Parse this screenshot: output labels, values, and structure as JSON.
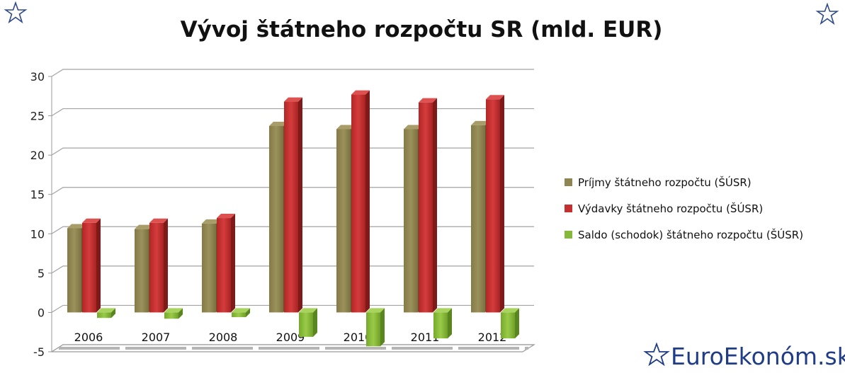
{
  "brand": {
    "text": "EuroEkonóm.sk",
    "icon": "star-outline-icon"
  },
  "chart_data": {
    "type": "bar",
    "title": "Vývoj štátneho rozpočtu SR (mld. EUR)",
    "xlabel": "",
    "ylabel": "",
    "categories": [
      "2006",
      "2007",
      "2008",
      "2009",
      "2010",
      "2011",
      "2012"
    ],
    "ylim": [
      -5,
      30
    ],
    "yticks": [
      "-5",
      "0",
      "5",
      "10",
      "15",
      "20",
      "25",
      "30"
    ],
    "grid": true,
    "legend_position": "right",
    "series": [
      {
        "name": "Príjmy štátneho rozpočtu (ŠÚSR)",
        "color": "#8f8550",
        "values": [
          10.7,
          10.6,
          11.3,
          23.7,
          23.3,
          23.3,
          23.8
        ]
      },
      {
        "name": "Výdavky štátneho rozpočtu (ŠÚSR)",
        "color": "#c42f2f",
        "values": [
          11.4,
          11.4,
          12.0,
          26.8,
          27.7,
          26.7,
          27.1
        ]
      },
      {
        "name": "Saldo (schodok) štátneho rozpočtu (ŠÚSR)",
        "color": "#86b83a",
        "values": [
          -0.7,
          -0.8,
          -0.6,
          -3.1,
          -4.3,
          -3.3,
          -3.3
        ]
      }
    ]
  }
}
